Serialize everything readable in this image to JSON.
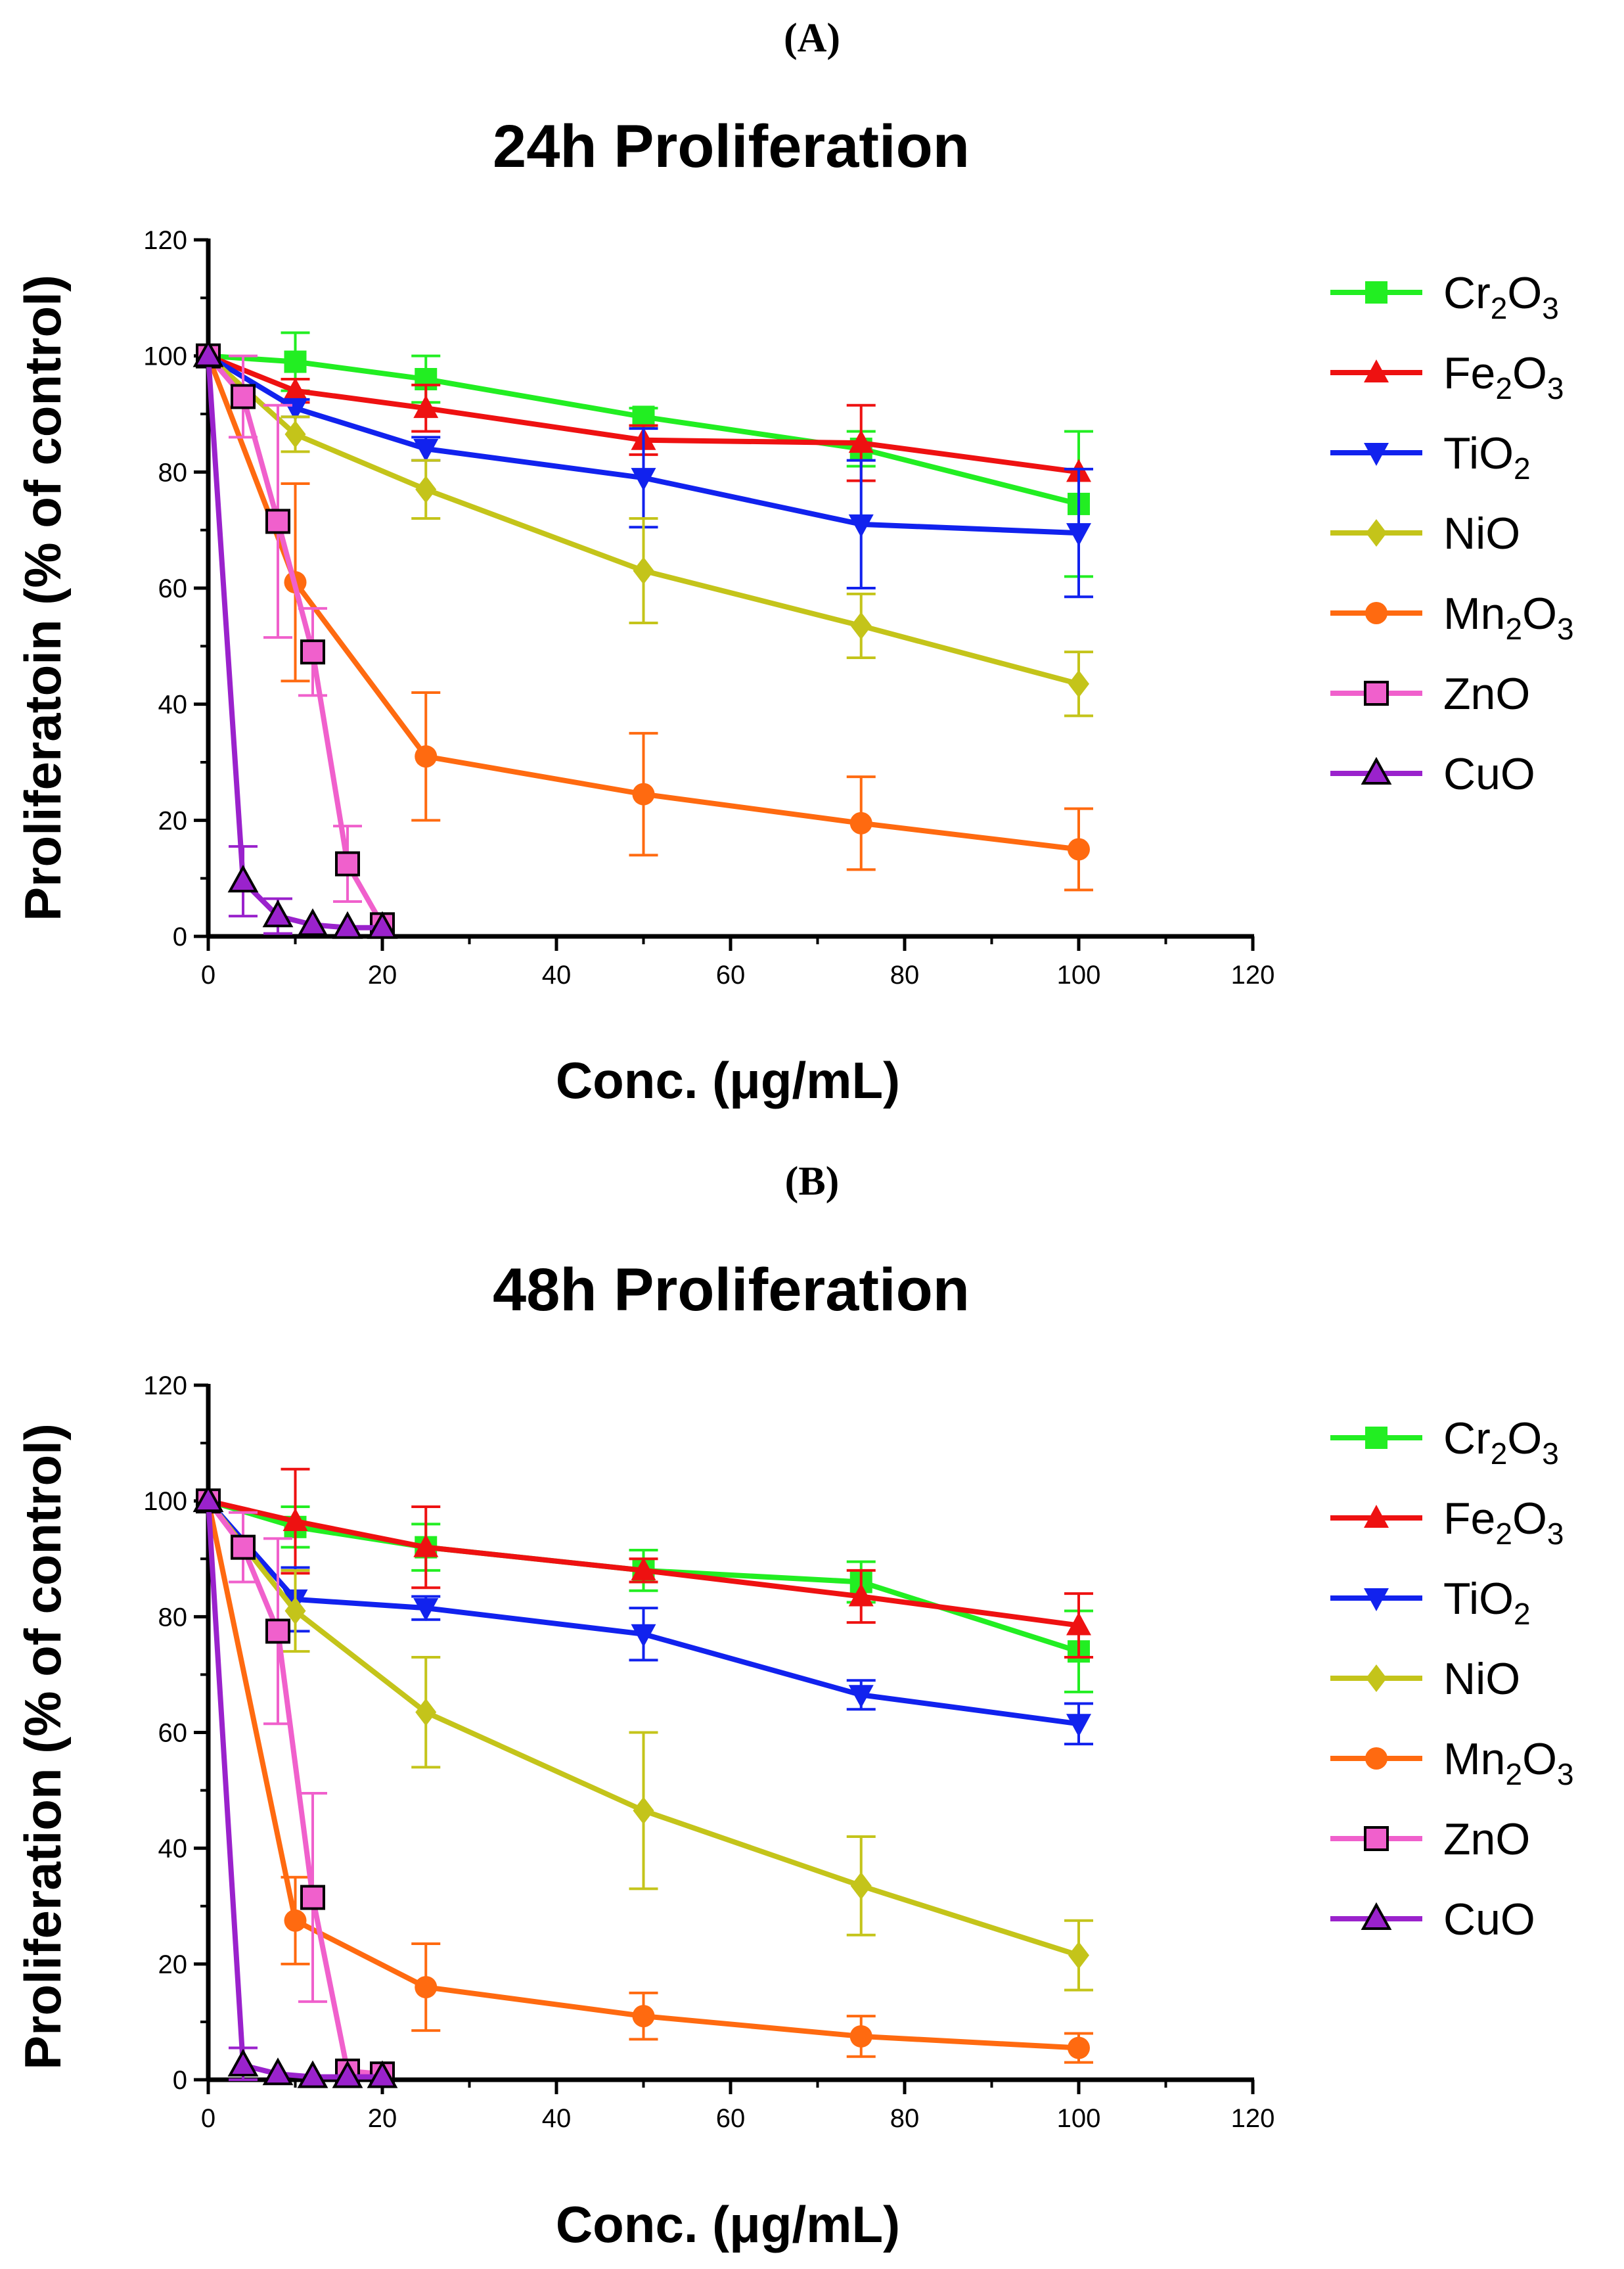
{
  "chart_data": [
    {
      "type": "line",
      "panel_label": "(A)",
      "title": "24h Proliferation",
      "xlabel": "Conc. (μg/mL)",
      "ylabel": "Proliferatoin (% of control)",
      "xlim": [
        0,
        120
      ],
      "ylim": [
        0,
        120
      ],
      "xticks": [
        "0",
        "20",
        "40",
        "60",
        "80",
        "100",
        "120"
      ],
      "yticks": [
        "0",
        "20",
        "40",
        "60",
        "80",
        "100",
        "120"
      ],
      "grid": false,
      "legend_position": "right",
      "series": [
        {
          "name": "Cr2O3",
          "label_parts": [
            [
              "Cr",
              ""
            ],
            [
              "2",
              "sub"
            ],
            [
              "O",
              ""
            ],
            [
              "3",
              "sub"
            ]
          ],
          "color": "#22ee22",
          "marker": "square-filled",
          "x": [
            0,
            10,
            25,
            50,
            75,
            100
          ],
          "y": [
            100,
            99,
            96,
            89.5,
            84,
            74.5
          ],
          "err": [
            0,
            5,
            4,
            1.5,
            3,
            12.5
          ]
        },
        {
          "name": "Fe2O3",
          "label_parts": [
            [
              "Fe",
              ""
            ],
            [
              "2",
              "sub"
            ],
            [
              "O",
              ""
            ],
            [
              "3",
              "sub"
            ]
          ],
          "color": "#ee1111",
          "marker": "triangle-up",
          "x": [
            0,
            10,
            25,
            50,
            75,
            100
          ],
          "y": [
            100,
            94,
            91,
            85.5,
            85,
            80
          ],
          "err": [
            0,
            2,
            4,
            2.5,
            6.5,
            0
          ]
        },
        {
          "name": "TiO2",
          "label_parts": [
            [
              "TiO",
              ""
            ],
            [
              "2",
              "sub"
            ]
          ],
          "color": "#1122ee",
          "marker": "triangle-down",
          "x": [
            0,
            10,
            25,
            50,
            75,
            100
          ],
          "y": [
            100,
            91,
            84,
            79,
            71,
            69.5
          ],
          "err": [
            0,
            1.5,
            2,
            8.5,
            11,
            11
          ]
        },
        {
          "name": "NiO",
          "label_parts": [
            [
              "NiO",
              ""
            ]
          ],
          "color": "#c4c41a",
          "marker": "diamond",
          "x": [
            0,
            10,
            25,
            50,
            75,
            100
          ],
          "y": [
            100,
            86.5,
            77,
            63,
            53.5,
            43.5
          ],
          "err": [
            0,
            3,
            5,
            9,
            5.5,
            5.5
          ]
        },
        {
          "name": "Mn2O3",
          "label_parts": [
            [
              "Mn",
              ""
            ],
            [
              "2",
              "sub"
            ],
            [
              "O",
              ""
            ],
            [
              "3",
              "sub"
            ]
          ],
          "color": "#ff6a10",
          "marker": "circle",
          "x": [
            0,
            10,
            25,
            50,
            75,
            100
          ],
          "y": [
            100,
            61,
            31,
            24.5,
            19.5,
            15
          ],
          "err": [
            0,
            17,
            11,
            10.5,
            8,
            7
          ]
        },
        {
          "name": "ZnO",
          "label_parts": [
            [
              "ZnO",
              ""
            ]
          ],
          "color": "#f060cc",
          "marker": "square-open",
          "x": [
            0,
            4,
            8,
            12,
            16,
            20
          ],
          "y": [
            100,
            93,
            71.5,
            49,
            12.5,
            2
          ],
          "err": [
            0,
            7,
            20,
            7.5,
            6.5,
            0
          ]
        },
        {
          "name": "CuO",
          "label_parts": [
            [
              "CuO",
              ""
            ]
          ],
          "color": "#9a22cc",
          "marker": "triangle-open",
          "x": [
            0,
            4,
            8,
            12,
            16,
            20
          ],
          "y": [
            100,
            9.5,
            3.5,
            2,
            1.5,
            1.5
          ],
          "err": [
            0,
            6,
            3,
            0,
            0,
            0
          ]
        }
      ]
    },
    {
      "type": "line",
      "panel_label": "(B)",
      "title": "48h Proliferation",
      "xlabel": "Conc. (μg/mL)",
      "ylabel": "Proliferation (% of control)",
      "xlim": [
        0,
        120
      ],
      "ylim": [
        0,
        120
      ],
      "xticks": [
        "0",
        "20",
        "40",
        "60",
        "80",
        "100",
        "120"
      ],
      "yticks": [
        "0",
        "20",
        "40",
        "60",
        "80",
        "100",
        "120"
      ],
      "grid": false,
      "legend_position": "right",
      "series": [
        {
          "name": "Cr2O3",
          "label_parts": [
            [
              "Cr",
              ""
            ],
            [
              "2",
              "sub"
            ],
            [
              "O",
              ""
            ],
            [
              "3",
              "sub"
            ]
          ],
          "color": "#22ee22",
          "marker": "square-filled",
          "x": [
            0,
            10,
            25,
            50,
            75,
            100
          ],
          "y": [
            100,
            95.5,
            92,
            88,
            86,
            74
          ],
          "err": [
            0,
            3.5,
            4,
            3.5,
            3.5,
            7
          ]
        },
        {
          "name": "Fe2O3",
          "label_parts": [
            [
              "Fe",
              ""
            ],
            [
              "2",
              "sub"
            ],
            [
              "O",
              ""
            ],
            [
              "3",
              "sub"
            ]
          ],
          "color": "#ee1111",
          "marker": "triangle-up",
          "x": [
            0,
            10,
            25,
            50,
            75,
            100
          ],
          "y": [
            100,
            96.5,
            92,
            88,
            83.5,
            78.5
          ],
          "err": [
            0,
            9,
            7,
            2,
            4.5,
            5.5
          ]
        },
        {
          "name": "TiO2",
          "label_parts": [
            [
              "TiO",
              ""
            ],
            [
              "2",
              "sub"
            ]
          ],
          "color": "#1122ee",
          "marker": "triangle-down",
          "x": [
            0,
            10,
            25,
            50,
            75,
            100
          ],
          "y": [
            100,
            83,
            81.5,
            77,
            66.5,
            61.5
          ],
          "err": [
            0,
            5.5,
            2,
            4.5,
            2.5,
            3.5
          ]
        },
        {
          "name": "NiO",
          "label_parts": [
            [
              "NiO",
              ""
            ]
          ],
          "color": "#c4c41a",
          "marker": "diamond",
          "x": [
            0,
            10,
            25,
            50,
            75,
            100
          ],
          "y": [
            100,
            81,
            63.5,
            46.5,
            33.5,
            21.5
          ],
          "err": [
            0,
            7,
            9.5,
            13.5,
            8.5,
            6
          ]
        },
        {
          "name": "Mn2O3",
          "label_parts": [
            [
              "Mn",
              ""
            ],
            [
              "2",
              "sub"
            ],
            [
              "O",
              ""
            ],
            [
              "3",
              "sub"
            ]
          ],
          "color": "#ff6a10",
          "marker": "circle",
          "x": [
            0,
            10,
            25,
            50,
            75,
            100
          ],
          "y": [
            100,
            27.5,
            16,
            11,
            7.5,
            5.5
          ],
          "err": [
            0,
            7.5,
            7.5,
            4,
            3.5,
            2.5
          ]
        },
        {
          "name": "ZnO",
          "label_parts": [
            [
              "ZnO",
              ""
            ]
          ],
          "color": "#f060cc",
          "marker": "square-open",
          "x": [
            0,
            4,
            8,
            12,
            16,
            20
          ],
          "y": [
            100,
            92,
            77.5,
            31.5,
            1.5,
            1
          ],
          "err": [
            0,
            6,
            16,
            18,
            0,
            0
          ]
        },
        {
          "name": "CuO",
          "label_parts": [
            [
              "CuO",
              ""
            ]
          ],
          "color": "#9a22cc",
          "marker": "triangle-open",
          "x": [
            0,
            4,
            8,
            12,
            16,
            20
          ],
          "y": [
            100,
            2.5,
            1,
            0.5,
            0.5,
            0.5
          ],
          "err": [
            0,
            3,
            0,
            0,
            0,
            0
          ]
        }
      ]
    }
  ]
}
